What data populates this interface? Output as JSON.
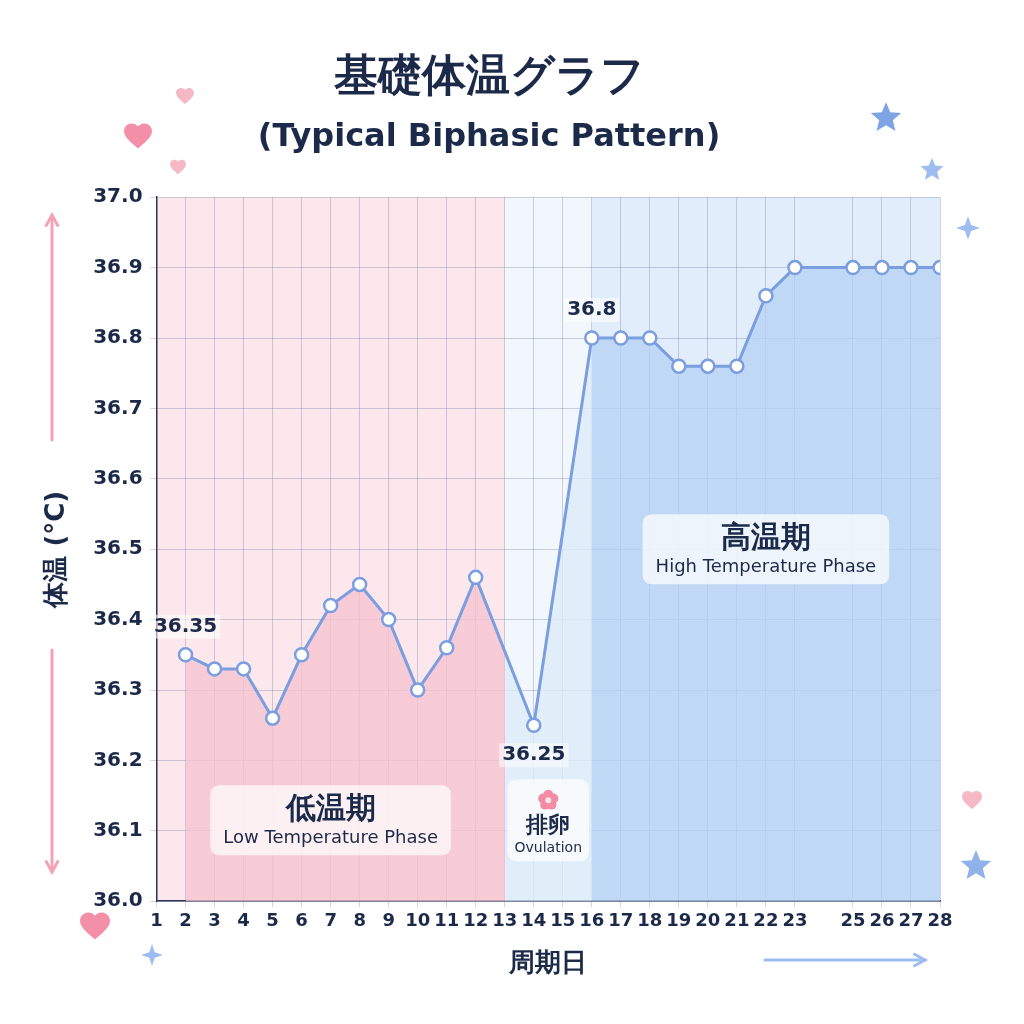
{
  "chart_data": {
    "type": "line",
    "title": "基礎体温グラフ",
    "subtitle": "(Typical Biphasic Pattern)",
    "x_label": "周期日",
    "y_label": "体温 (°C)",
    "x": [
      2,
      3,
      4,
      5,
      6,
      7,
      8,
      9,
      10,
      11,
      12,
      14,
      16,
      17,
      18,
      19,
      20,
      21,
      22,
      23,
      25,
      26,
      27,
      28
    ],
    "values": [
      36.35,
      36.33,
      36.33,
      36.26,
      36.35,
      36.42,
      36.45,
      36.4,
      36.3,
      36.36,
      36.46,
      36.25,
      36.8,
      36.8,
      36.8,
      36.76,
      36.76,
      36.76,
      36.86,
      36.9,
      36.9,
      36.9,
      36.9,
      36.9
    ],
    "color": "#7a9ee0",
    "marker": "circle",
    "xlim": [
      1,
      28
    ],
    "xticks": [
      1,
      2,
      3,
      4,
      5,
      6,
      7,
      8,
      9,
      10,
      11,
      12,
      13,
      14,
      15,
      16,
      17,
      18,
      19,
      20,
      21,
      22,
      23,
      25,
      26,
      27,
      28
    ],
    "ylim": [
      36,
      37
    ],
    "yticks": [
      {
        "value": 36,
        "label": "36.0"
      },
      36.1,
      36.2,
      36.3,
      36.4,
      36.5,
      36.6,
      36.7,
      36.8,
      36.9,
      {
        "value": 37,
        "label": "37.0"
      }
    ],
    "grid": true,
    "annotations": [
      {
        "text": "36.35",
        "x": 2,
        "y": 36.35
      },
      {
        "text": "36.8",
        "x": 16,
        "y": 36.8
      },
      {
        "text": "36.25",
        "x": 14,
        "y": 36.25
      }
    ],
    "phases": [
      {
        "label": "低温期",
        "sublabel": "Low Temperature Phase",
        "from": 1,
        "to": 13,
        "color": "#f7c3cf"
      },
      {
        "label": "排卵",
        "sublabel": "Ovulation",
        "from": 13,
        "to": 16,
        "color": "#dcecfa"
      },
      {
        "label": "高温期",
        "sublabel": "High Temperature Phase",
        "from": 16,
        "to": 28,
        "color": "#b5d2f5"
      }
    ]
  }
}
